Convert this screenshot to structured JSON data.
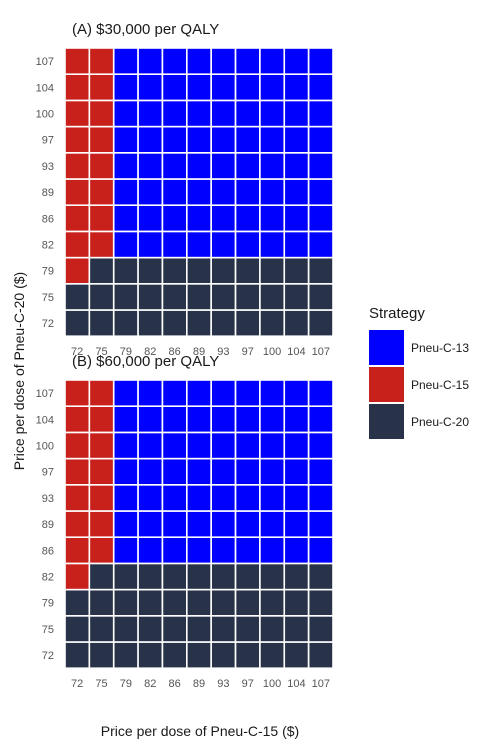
{
  "chart_data": {
    "type": "heatmap",
    "xlabel": "Price per dose of Pneu-C-15 ($)",
    "ylabel": "Price per dose of Pneu-C-20 ($)",
    "x": [
      "72",
      "75",
      "79",
      "82",
      "86",
      "89",
      "93",
      "97",
      "100",
      "104",
      "107"
    ],
    "y": [
      "72",
      "75",
      "79",
      "82",
      "86",
      "89",
      "93",
      "97",
      "100",
      "104",
      "107"
    ],
    "legend": {
      "title": "Strategy",
      "placement": "right",
      "items": [
        {
          "name": "Pneu-C-13",
          "color": "#0000ff"
        },
        {
          "name": "Pneu-C-15",
          "color": "#c8201a"
        },
        {
          "name": "Pneu-C-20",
          "color": "#28334a"
        }
      ]
    },
    "panels": [
      {
        "title": "(A) $30,000 per QALY",
        "rows": [
          [
            "Pneu-C-20",
            "Pneu-C-20",
            "Pneu-C-20",
            "Pneu-C-20",
            "Pneu-C-20",
            "Pneu-C-20",
            "Pneu-C-20",
            "Pneu-C-20",
            "Pneu-C-20",
            "Pneu-C-20",
            "Pneu-C-20"
          ],
          [
            "Pneu-C-20",
            "Pneu-C-20",
            "Pneu-C-20",
            "Pneu-C-20",
            "Pneu-C-20",
            "Pneu-C-20",
            "Pneu-C-20",
            "Pneu-C-20",
            "Pneu-C-20",
            "Pneu-C-20",
            "Pneu-C-20"
          ],
          [
            "Pneu-C-15",
            "Pneu-C-20",
            "Pneu-C-20",
            "Pneu-C-20",
            "Pneu-C-20",
            "Pneu-C-20",
            "Pneu-C-20",
            "Pneu-C-20",
            "Pneu-C-20",
            "Pneu-C-20",
            "Pneu-C-20"
          ],
          [
            "Pneu-C-15",
            "Pneu-C-15",
            "Pneu-C-13",
            "Pneu-C-13",
            "Pneu-C-13",
            "Pneu-C-13",
            "Pneu-C-13",
            "Pneu-C-13",
            "Pneu-C-13",
            "Pneu-C-13",
            "Pneu-C-13"
          ],
          [
            "Pneu-C-15",
            "Pneu-C-15",
            "Pneu-C-13",
            "Pneu-C-13",
            "Pneu-C-13",
            "Pneu-C-13",
            "Pneu-C-13",
            "Pneu-C-13",
            "Pneu-C-13",
            "Pneu-C-13",
            "Pneu-C-13"
          ],
          [
            "Pneu-C-15",
            "Pneu-C-15",
            "Pneu-C-13",
            "Pneu-C-13",
            "Pneu-C-13",
            "Pneu-C-13",
            "Pneu-C-13",
            "Pneu-C-13",
            "Pneu-C-13",
            "Pneu-C-13",
            "Pneu-C-13"
          ],
          [
            "Pneu-C-15",
            "Pneu-C-15",
            "Pneu-C-13",
            "Pneu-C-13",
            "Pneu-C-13",
            "Pneu-C-13",
            "Pneu-C-13",
            "Pneu-C-13",
            "Pneu-C-13",
            "Pneu-C-13",
            "Pneu-C-13"
          ],
          [
            "Pneu-C-15",
            "Pneu-C-15",
            "Pneu-C-13",
            "Pneu-C-13",
            "Pneu-C-13",
            "Pneu-C-13",
            "Pneu-C-13",
            "Pneu-C-13",
            "Pneu-C-13",
            "Pneu-C-13",
            "Pneu-C-13"
          ],
          [
            "Pneu-C-15",
            "Pneu-C-15",
            "Pneu-C-13",
            "Pneu-C-13",
            "Pneu-C-13",
            "Pneu-C-13",
            "Pneu-C-13",
            "Pneu-C-13",
            "Pneu-C-13",
            "Pneu-C-13",
            "Pneu-C-13"
          ],
          [
            "Pneu-C-15",
            "Pneu-C-15",
            "Pneu-C-13",
            "Pneu-C-13",
            "Pneu-C-13",
            "Pneu-C-13",
            "Pneu-C-13",
            "Pneu-C-13",
            "Pneu-C-13",
            "Pneu-C-13",
            "Pneu-C-13"
          ],
          [
            "Pneu-C-15",
            "Pneu-C-15",
            "Pneu-C-13",
            "Pneu-C-13",
            "Pneu-C-13",
            "Pneu-C-13",
            "Pneu-C-13",
            "Pneu-C-13",
            "Pneu-C-13",
            "Pneu-C-13",
            "Pneu-C-13"
          ]
        ]
      },
      {
        "title": "(B) $60,000 per QALY",
        "rows": [
          [
            "Pneu-C-20",
            "Pneu-C-20",
            "Pneu-C-20",
            "Pneu-C-20",
            "Pneu-C-20",
            "Pneu-C-20",
            "Pneu-C-20",
            "Pneu-C-20",
            "Pneu-C-20",
            "Pneu-C-20",
            "Pneu-C-20"
          ],
          [
            "Pneu-C-20",
            "Pneu-C-20",
            "Pneu-C-20",
            "Pneu-C-20",
            "Pneu-C-20",
            "Pneu-C-20",
            "Pneu-C-20",
            "Pneu-C-20",
            "Pneu-C-20",
            "Pneu-C-20",
            "Pneu-C-20"
          ],
          [
            "Pneu-C-20",
            "Pneu-C-20",
            "Pneu-C-20",
            "Pneu-C-20",
            "Pneu-C-20",
            "Pneu-C-20",
            "Pneu-C-20",
            "Pneu-C-20",
            "Pneu-C-20",
            "Pneu-C-20",
            "Pneu-C-20"
          ],
          [
            "Pneu-C-15",
            "Pneu-C-20",
            "Pneu-C-20",
            "Pneu-C-20",
            "Pneu-C-20",
            "Pneu-C-20",
            "Pneu-C-20",
            "Pneu-C-20",
            "Pneu-C-20",
            "Pneu-C-20",
            "Pneu-C-20"
          ],
          [
            "Pneu-C-15",
            "Pneu-C-15",
            "Pneu-C-13",
            "Pneu-C-13",
            "Pneu-C-13",
            "Pneu-C-13",
            "Pneu-C-13",
            "Pneu-C-13",
            "Pneu-C-13",
            "Pneu-C-13",
            "Pneu-C-13"
          ],
          [
            "Pneu-C-15",
            "Pneu-C-15",
            "Pneu-C-13",
            "Pneu-C-13",
            "Pneu-C-13",
            "Pneu-C-13",
            "Pneu-C-13",
            "Pneu-C-13",
            "Pneu-C-13",
            "Pneu-C-13",
            "Pneu-C-13"
          ],
          [
            "Pneu-C-15",
            "Pneu-C-15",
            "Pneu-C-13",
            "Pneu-C-13",
            "Pneu-C-13",
            "Pneu-C-13",
            "Pneu-C-13",
            "Pneu-C-13",
            "Pneu-C-13",
            "Pneu-C-13",
            "Pneu-C-13"
          ],
          [
            "Pneu-C-15",
            "Pneu-C-15",
            "Pneu-C-13",
            "Pneu-C-13",
            "Pneu-C-13",
            "Pneu-C-13",
            "Pneu-C-13",
            "Pneu-C-13",
            "Pneu-C-13",
            "Pneu-C-13",
            "Pneu-C-13"
          ],
          [
            "Pneu-C-15",
            "Pneu-C-15",
            "Pneu-C-13",
            "Pneu-C-13",
            "Pneu-C-13",
            "Pneu-C-13",
            "Pneu-C-13",
            "Pneu-C-13",
            "Pneu-C-13",
            "Pneu-C-13",
            "Pneu-C-13"
          ],
          [
            "Pneu-C-15",
            "Pneu-C-15",
            "Pneu-C-13",
            "Pneu-C-13",
            "Pneu-C-13",
            "Pneu-C-13",
            "Pneu-C-13",
            "Pneu-C-13",
            "Pneu-C-13",
            "Pneu-C-13",
            "Pneu-C-13"
          ],
          [
            "Pneu-C-15",
            "Pneu-C-15",
            "Pneu-C-13",
            "Pneu-C-13",
            "Pneu-C-13",
            "Pneu-C-13",
            "Pneu-C-13",
            "Pneu-C-13",
            "Pneu-C-13",
            "Pneu-C-13",
            "Pneu-C-13"
          ]
        ]
      }
    ]
  }
}
